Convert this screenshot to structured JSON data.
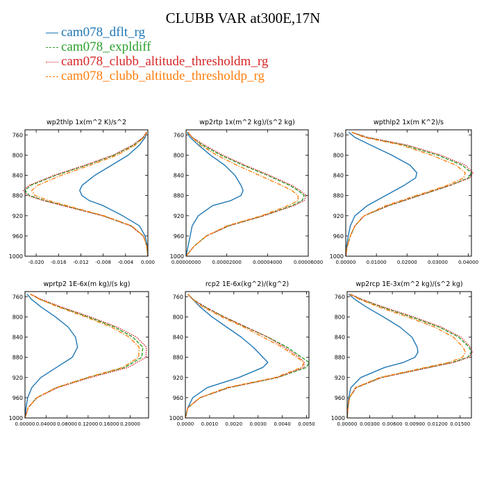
{
  "title": "CLUBB VAR at300E,17N",
  "legend": [
    {
      "name": "cam078_dflt_rg",
      "color": "#1f77b4",
      "dash": "solid"
    },
    {
      "name": "cam078_expldiff",
      "color": "#2ca02c",
      "dash": "5,2"
    },
    {
      "name": "cam078_clubb_altitude_thresholdm_rg",
      "color": "#d62728",
      "dash": "1.5,1.5"
    },
    {
      "name": "cam078_clubb_altitude_thresholdp_rg",
      "color": "#ff7f0e",
      "dash": "6,2,1.5,2"
    }
  ],
  "chart_data": [
    {
      "type": "line",
      "title": "wp2thlp   1x(m^2 K)/s^2",
      "xlim": [
        -0.022,
        0.0
      ],
      "ylim": [
        1000,
        750
      ],
      "y_reversed": true,
      "xticks": [
        -0.02,
        -0.016,
        -0.012,
        -0.008,
        -0.004,
        0.0
      ],
      "xticklabels": [
        "-0.020",
        "-0.016",
        "-0.012",
        "-0.008",
        "-0.004",
        "0.000"
      ],
      "yticks": [
        760,
        800,
        840,
        880,
        920,
        960,
        1000
      ],
      "y": [
        755,
        765,
        780,
        800,
        820,
        840,
        860,
        870,
        880,
        890,
        900,
        920,
        940,
        960,
        980,
        1000
      ],
      "series": [
        {
          "name": "cam078_dflt_rg",
          "values": [
            -0.0002,
            -0.0005,
            -0.0015,
            -0.0035,
            -0.0065,
            -0.0095,
            -0.0118,
            -0.0122,
            -0.0118,
            -0.0105,
            -0.008,
            -0.0045,
            -0.0015,
            -0.0005,
            -0.0001,
            0.0
          ]
        },
        {
          "name": "cam078_expldiff",
          "values": [
            -0.0002,
            -0.0008,
            -0.0025,
            -0.006,
            -0.011,
            -0.0165,
            -0.021,
            -0.022,
            -0.0212,
            -0.0185,
            -0.015,
            -0.008,
            -0.003,
            -0.0008,
            -0.0002,
            0.0
          ]
        },
        {
          "name": "cam078_clubb_altitude_thresholdm_rg",
          "values": [
            -0.0003,
            -0.0009,
            -0.0027,
            -0.0062,
            -0.0113,
            -0.0168,
            -0.0213,
            -0.0223,
            -0.0215,
            -0.0187,
            -0.0152,
            -0.0081,
            -0.0031,
            -0.0008,
            -0.0002,
            0.0
          ]
        },
        {
          "name": "cam078_clubb_altitude_thresholdp_rg",
          "values": [
            -0.0002,
            -0.0007,
            -0.0022,
            -0.0055,
            -0.0103,
            -0.0155,
            -0.0198,
            -0.0208,
            -0.0202,
            -0.0178,
            -0.0145,
            -0.0078,
            -0.0029,
            -0.0008,
            -0.0002,
            0.0
          ]
        }
      ]
    },
    {
      "type": "line",
      "title": "wp2rtp   1x(m^2 kg)/(s^2 kg)",
      "xlim": [
        0.0,
        6e-05
      ],
      "ylim": [
        1000,
        750
      ],
      "y_reversed": true,
      "xticks": [
        0.0,
        2e-05,
        4e-05,
        6e-05
      ],
      "xticklabels": [
        "0.00000000",
        "0.00002000",
        "0.00004000",
        "0.00006000"
      ],
      "yticks": [
        760,
        800,
        840,
        880,
        920,
        960,
        1000
      ],
      "y": [
        755,
        765,
        780,
        800,
        820,
        840,
        860,
        870,
        880,
        890,
        900,
        920,
        940,
        960,
        980,
        1000
      ],
      "series": [
        {
          "name": "cam078_dflt_rg",
          "values": [
            5e-07,
            2e-06,
            6e-06,
            1.2e-05,
            1.9e-05,
            2.4e-05,
            2.7e-05,
            2.8e-05,
            2.7e-05,
            2.2e-05,
            1.3e-05,
            6e-06,
            3e-06,
            2e-06,
            1e-06,
            0.0
          ]
        },
        {
          "name": "cam078_expldiff",
          "values": [
            1e-06,
            3e-06,
            8e-06,
            1.7e-05,
            2.8e-05,
            4e-05,
            5.1e-05,
            5.5e-05,
            5.8e-05,
            5.7e-05,
            5.2e-05,
            3.8e-05,
            2.1e-05,
            1e-05,
            4e-06,
            0.0
          ]
        },
        {
          "name": "cam078_clubb_altitude_thresholdm_rg",
          "values": [
            1e-06,
            3e-06,
            9e-06,
            1.8e-05,
            2.9e-05,
            4.1e-05,
            5.2e-05,
            5.6e-05,
            5.9e-05,
            5.8e-05,
            5.3e-05,
            3.8e-05,
            2.1e-05,
            1e-05,
            4e-06,
            0.0
          ]
        },
        {
          "name": "cam078_clubb_altitude_thresholdp_rg",
          "values": [
            1e-06,
            3e-06,
            7e-06,
            1.5e-05,
            2.5e-05,
            3.6e-05,
            4.7e-05,
            5.2e-05,
            5.5e-05,
            5.5e-05,
            5e-05,
            3.7e-05,
            2e-05,
            1e-05,
            4e-06,
            0.0
          ]
        }
      ]
    },
    {
      "type": "line",
      "title": "wpthlp2   1x(m K^2)/s",
      "xlim": [
        0.0,
        0.041
      ],
      "ylim": [
        1000,
        750
      ],
      "y_reversed": true,
      "xticks": [
        0.0,
        0.01,
        0.02,
        0.03,
        0.04
      ],
      "xticklabels": [
        "0.00000",
        "0.01000",
        "0.02000",
        "0.03000",
        "0.04000"
      ],
      "yticks": [
        760,
        800,
        840,
        880,
        920,
        960,
        1000
      ],
      "y": [
        755,
        765,
        780,
        800,
        820,
        835,
        845,
        860,
        880,
        900,
        920,
        940,
        960,
        980,
        1000
      ],
      "series": [
        {
          "name": "cam078_dflt_rg",
          "values": [
            0.001,
            0.003,
            0.008,
            0.015,
            0.021,
            0.0232,
            0.0228,
            0.019,
            0.013,
            0.007,
            0.003,
            0.0015,
            0.0008,
            0.0003,
            0.0
          ]
        },
        {
          "name": "cam078_expldiff",
          "values": [
            0.002,
            0.007,
            0.019,
            0.03,
            0.038,
            0.041,
            0.04,
            0.034,
            0.024,
            0.014,
            0.006,
            0.003,
            0.0015,
            0.0005,
            0.0
          ]
        },
        {
          "name": "cam078_clubb_altitude_thresholdm_rg",
          "values": [
            0.002,
            0.007,
            0.02,
            0.031,
            0.039,
            0.0415,
            0.0405,
            0.034,
            0.024,
            0.014,
            0.006,
            0.003,
            0.0015,
            0.0005,
            0.0
          ]
        },
        {
          "name": "cam078_clubb_altitude_thresholdp_rg",
          "values": [
            0.002,
            0.006,
            0.018,
            0.028,
            0.036,
            0.039,
            0.0385,
            0.033,
            0.023,
            0.013,
            0.006,
            0.003,
            0.0015,
            0.0005,
            0.0
          ]
        }
      ]
    },
    {
      "type": "line",
      "title": "wprtp2   1E-6x(m kg)/(s kg)",
      "xlim": [
        0.0,
        0.235
      ],
      "ylim": [
        1000,
        750
      ],
      "y_reversed": true,
      "xticks": [
        0.0,
        0.04,
        0.08,
        0.12,
        0.16,
        0.2
      ],
      "xticklabels": [
        "0.00000",
        "0.04000",
        "0.08000",
        "0.12000",
        "0.16000",
        "0.20000"
      ],
      "yticks": [
        760,
        800,
        840,
        880,
        920,
        960,
        1000
      ],
      "y": [
        755,
        765,
        780,
        800,
        820,
        840,
        860,
        880,
        900,
        920,
        940,
        960,
        980,
        1000
      ],
      "series": [
        {
          "name": "cam078_dflt_rg",
          "values": [
            0.004,
            0.012,
            0.03,
            0.058,
            0.082,
            0.096,
            0.1,
            0.09,
            0.06,
            0.03,
            0.013,
            0.005,
            0.002,
            0.0
          ]
        },
        {
          "name": "cam078_expldiff",
          "values": [
            0.01,
            0.028,
            0.065,
            0.12,
            0.17,
            0.205,
            0.224,
            0.222,
            0.19,
            0.12,
            0.06,
            0.022,
            0.006,
            0.0
          ]
        },
        {
          "name": "cam078_clubb_altitude_thresholdm_rg",
          "values": [
            0.011,
            0.03,
            0.068,
            0.124,
            0.175,
            0.212,
            0.231,
            0.23,
            0.196,
            0.124,
            0.062,
            0.023,
            0.006,
            0.0
          ]
        },
        {
          "name": "cam078_clubb_altitude_thresholdp_rg",
          "values": [
            0.01,
            0.027,
            0.062,
            0.115,
            0.164,
            0.198,
            0.217,
            0.216,
            0.186,
            0.118,
            0.059,
            0.022,
            0.006,
            0.0
          ]
        }
      ]
    },
    {
      "type": "line",
      "title": "rcp2   1E-6x(kg^2)/(kg^2)",
      "xlim": [
        0.0,
        0.0051
      ],
      "ylim": [
        1000,
        750
      ],
      "y_reversed": true,
      "xticks": [
        0.0,
        0.001,
        0.002,
        0.003,
        0.004,
        0.005
      ],
      "xticklabels": [
        "0.0000",
        "0.0010",
        "0.0020",
        "0.0030",
        "0.0040",
        "0.0050"
      ],
      "yticks": [
        760,
        800,
        840,
        880,
        920,
        960,
        1000
      ],
      "y": [
        755,
        765,
        780,
        800,
        820,
        840,
        860,
        880,
        890,
        900,
        920,
        940,
        960,
        980,
        1000
      ],
      "series": [
        {
          "name": "cam078_dflt_rg",
          "values": [
            0.0001,
            0.0003,
            0.0006,
            0.0011,
            0.0017,
            0.0023,
            0.0028,
            0.0032,
            0.0034,
            0.0032,
            0.0022,
            0.0009,
            0.0003,
            0.0001,
            0.0
          ]
        },
        {
          "name": "cam078_expldiff",
          "values": [
            0.0001,
            0.0003,
            0.0008,
            0.0016,
            0.0025,
            0.0034,
            0.0042,
            0.0048,
            0.0051,
            0.005,
            0.0038,
            0.0018,
            0.0006,
            0.0001,
            0.0
          ]
        },
        {
          "name": "cam078_clubb_altitude_thresholdm_rg",
          "values": [
            0.0001,
            0.0003,
            0.0008,
            0.0016,
            0.0025,
            0.0034,
            0.0041,
            0.0047,
            0.0049,
            0.0049,
            0.0038,
            0.0018,
            0.0006,
            0.0001,
            0.0
          ]
        },
        {
          "name": "cam078_clubb_altitude_thresholdp_rg",
          "values": [
            0.0001,
            0.0003,
            0.0007,
            0.0015,
            0.0024,
            0.0032,
            0.004,
            0.0046,
            0.0049,
            0.0048,
            0.0037,
            0.0017,
            0.0006,
            0.0001,
            0.0
          ]
        }
      ]
    },
    {
      "type": "line",
      "title": "wp2rcp   1E-3x(m^2 kg)/(s^2 kg)",
      "xlim": [
        0.0,
        0.0165
      ],
      "ylim": [
        1000,
        750
      ],
      "y_reversed": true,
      "xticks": [
        0.0,
        0.003,
        0.006,
        0.009,
        0.012,
        0.015
      ],
      "xticklabels": [
        "0.00000",
        "0.00300",
        "0.00600",
        "0.00900",
        "0.01200",
        "0.01500"
      ],
      "yticks": [
        760,
        800,
        840,
        880,
        920,
        960,
        1000
      ],
      "y": [
        755,
        765,
        780,
        800,
        820,
        840,
        860,
        870,
        880,
        890,
        900,
        920,
        940,
        960,
        980,
        1000
      ],
      "series": [
        {
          "name": "cam078_dflt_rg",
          "values": [
            0.0002,
            0.001,
            0.0025,
            0.0048,
            0.007,
            0.0086,
            0.0093,
            0.0094,
            0.009,
            0.0075,
            0.005,
            0.0018,
            0.0005,
            0.0002,
            0.0001,
            0.0
          ]
        },
        {
          "name": "cam078_expldiff",
          "values": [
            0.0004,
            0.0018,
            0.0045,
            0.0085,
            0.0122,
            0.0148,
            0.0162,
            0.0165,
            0.016,
            0.014,
            0.0108,
            0.0045,
            0.0012,
            0.0003,
            0.0001,
            0.0
          ]
        },
        {
          "name": "cam078_clubb_altitude_thresholdm_rg",
          "values": [
            0.0004,
            0.0019,
            0.0047,
            0.0088,
            0.0125,
            0.0151,
            0.0164,
            0.0166,
            0.0162,
            0.0142,
            0.011,
            0.0046,
            0.0012,
            0.0003,
            0.0001,
            0.0
          ]
        },
        {
          "name": "cam078_clubb_altitude_thresholdp_rg",
          "values": [
            0.0003,
            0.0016,
            0.0041,
            0.008,
            0.0116,
            0.0141,
            0.0154,
            0.0157,
            0.0153,
            0.0135,
            0.0104,
            0.0043,
            0.0011,
            0.0003,
            0.0001,
            0.0
          ]
        }
      ]
    }
  ]
}
